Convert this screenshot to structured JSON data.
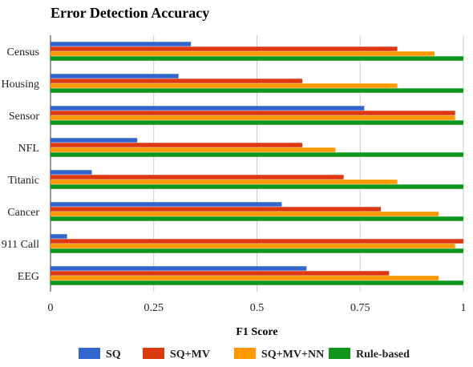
{
  "chart_data": {
    "type": "bar",
    "orientation": "horizontal",
    "title": "Error Detection Accuracy",
    "xlabel": "F1 Score",
    "ylabel": "",
    "xlim": [
      0,
      1
    ],
    "xticks": [
      0,
      0.25,
      0.5,
      0.75,
      1
    ],
    "xtick_labels": [
      "0",
      "0.25",
      "0.5",
      "0.75",
      "1"
    ],
    "grid": "vertical",
    "legend_position": "bottom",
    "categories": [
      "Census",
      "Housing",
      "Sensor",
      "NFL",
      "Titanic",
      "Cancer",
      "911 Call",
      "EEG"
    ],
    "series": [
      {
        "name": "SQ",
        "color": "#3366cc",
        "values": [
          0.34,
          0.31,
          0.76,
          0.21,
          0.1,
          0.56,
          0.04,
          0.62
        ]
      },
      {
        "name": "SQ+MV",
        "color": "#dc3912",
        "values": [
          0.84,
          0.61,
          0.98,
          0.61,
          0.71,
          0.8,
          1.0,
          0.82
        ]
      },
      {
        "name": "SQ+MV+NN",
        "color": "#ff9900",
        "values": [
          0.93,
          0.84,
          0.98,
          0.69,
          0.84,
          0.94,
          0.98,
          0.94
        ]
      },
      {
        "name": "Rule-based",
        "color": "#109618",
        "values": [
          1.0,
          1.0,
          1.0,
          1.0,
          1.0,
          1.0,
          1.0,
          1.0
        ]
      }
    ]
  }
}
